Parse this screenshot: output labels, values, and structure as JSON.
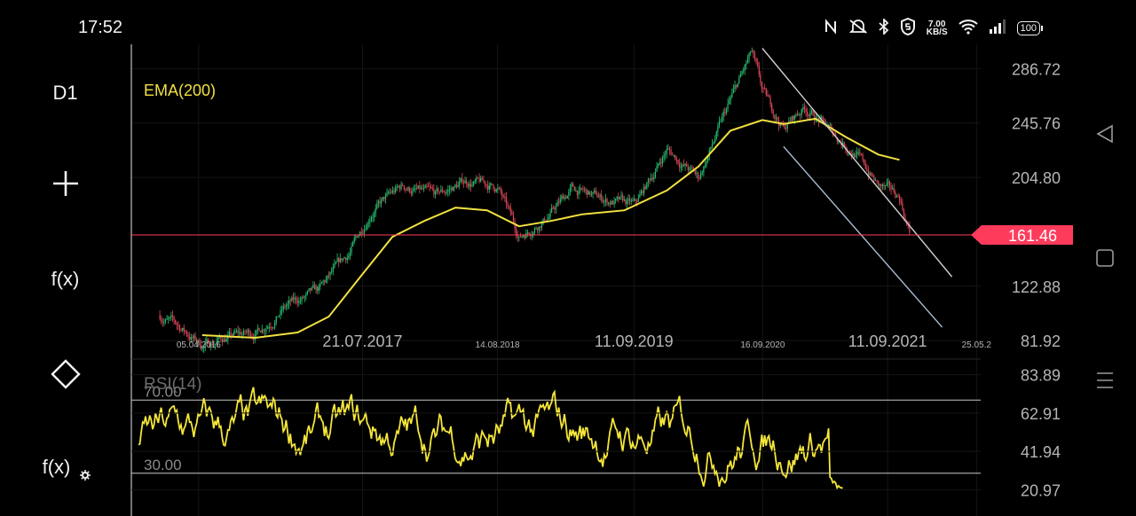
{
  "status_bar": {
    "time": "17:52",
    "net_speed_value": "7.00",
    "net_speed_unit": "KB/S",
    "battery": "100",
    "icons": [
      "nfc-icon",
      "mute-icon",
      "bluetooth-icon",
      "shield-icon",
      "wifi-icon",
      "signal-icon",
      "battery-icon"
    ]
  },
  "toolbar": {
    "timeframe": "D1",
    "add_symbol": "+",
    "function_label": "f(x)",
    "drawing_icon": "diamond-icon",
    "function_settings_label": "f(x)"
  },
  "navbar": {
    "icons": [
      "back-triangle-icon",
      "home-square-icon",
      "menu-lines-icon"
    ]
  },
  "chart_data": [
    {
      "type": "candlestick",
      "indicator_label": "EMA(200)",
      "price_axis_labels": [
        "286.72",
        "245.76",
        "204.80",
        "122.88",
        "81.92"
      ],
      "current_price": "161.46",
      "date_labels_large": [
        "21.07.2017",
        "11.09.2019",
        "11.09.2021"
      ],
      "date_labels_small": [
        "05.04.2016",
        "14.08.2018",
        "16.09.2020",
        "25.05.2"
      ],
      "ylim": [
        70,
        305
      ],
      "close_path_dates": [
        "2015-12",
        "2016-02",
        "2016-04",
        "2016-06",
        "2016-09",
        "2016-12",
        "2017-03",
        "2017-06",
        "2017-08",
        "2017-11",
        "2018-02",
        "2018-05",
        "2018-08",
        "2018-10",
        "2019-01",
        "2019-03",
        "2019-06",
        "2019-09",
        "2019-12",
        "2020-03",
        "2020-06",
        "2020-08",
        "2020-09",
        "2020-11",
        "2021-01",
        "2021-04",
        "2021-06",
        "2021-08",
        "2021-10",
        "2021-11"
      ],
      "close_path": [
        101,
        91,
        78,
        84,
        88,
        108,
        118,
        148,
        180,
        198,
        190,
        202,
        197,
        160,
        178,
        196,
        188,
        183,
        226,
        204,
        262,
        298,
        268,
        242,
        258,
        236,
        222,
        198,
        190,
        161
      ],
      "ema200_dates": [
        "2016-04",
        "2016-09",
        "2017-01",
        "2017-04",
        "2017-07",
        "2017-10",
        "2018-01",
        "2018-04",
        "2018-07",
        "2018-10",
        "2019-01",
        "2019-04",
        "2019-08",
        "2019-12",
        "2020-03",
        "2020-06",
        "2020-09",
        "2020-11",
        "2021-02",
        "2021-05",
        "2021-08",
        "2021-10"
      ],
      "ema200": [
        86,
        84,
        88,
        100,
        130,
        160,
        172,
        182,
        180,
        168,
        172,
        177,
        180,
        195,
        213,
        240,
        248,
        245,
        249,
        235,
        222,
        218
      ],
      "trendline_upper_dates": [
        "2020-09",
        "2022-03"
      ],
      "trendline_upper": [
        302,
        130
      ],
      "trendline_lower_dates": [
        "2020-11",
        "2022-02"
      ],
      "trendline_lower": [
        228,
        92
      ],
      "colors": {
        "bullish": "#27c070",
        "bearish": "#e0485a",
        "ema": "#f0e040",
        "price_line": "#ff3b5c"
      }
    },
    {
      "type": "line",
      "indicator_label": "RSI(14)",
      "levels": [
        "70.00",
        "30.00"
      ],
      "axis_labels": [
        "83.89",
        "62.91",
        "41.94",
        "20.97"
      ],
      "ylim": [
        10,
        90
      ],
      "color": "#f5e63a"
    }
  ]
}
